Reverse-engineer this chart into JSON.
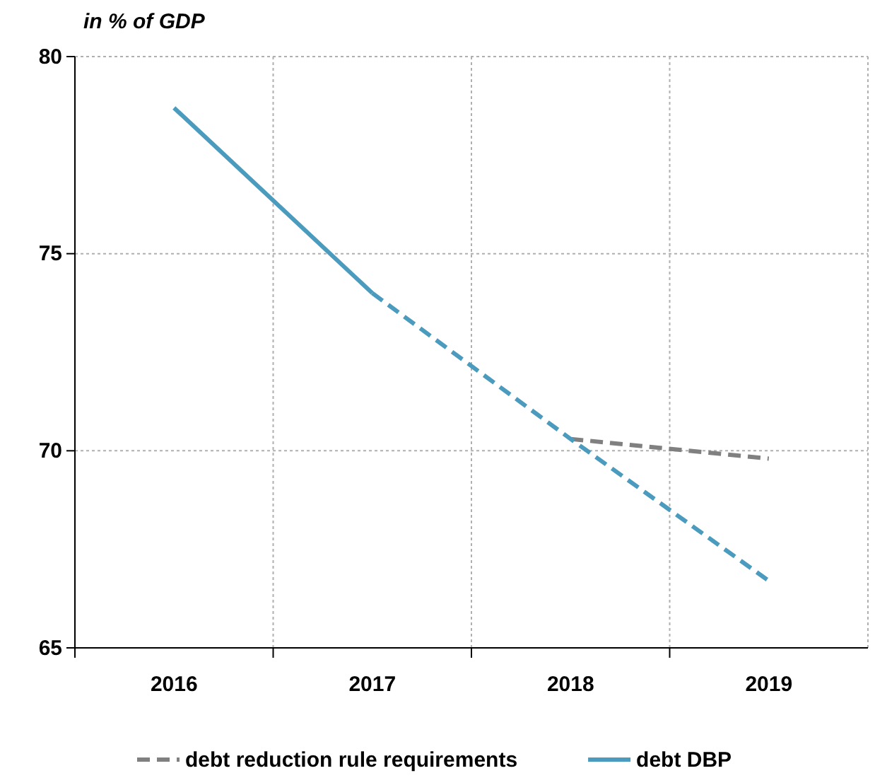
{
  "chart_data": {
    "type": "line",
    "ylabel": "in % of GDP",
    "categories": [
      "2016",
      "2017",
      "2018",
      "2019"
    ],
    "ylim": [
      65,
      80
    ],
    "yticks": [
      65,
      70,
      75,
      80
    ],
    "grid": true,
    "legend": "bottom",
    "marker": "none",
    "series": [
      {
        "name": "debt reduction rule requirements",
        "color": "#808080",
        "line_style": "dashed",
        "values": [
          null,
          null,
          70.3,
          69.8
        ]
      },
      {
        "name": "debt DBP",
        "color": "#4a9bbd",
        "line_style": "solid",
        "values": [
          78.7,
          74.0,
          null,
          null
        ]
      },
      {
        "color": "#4a9bbd",
        "line_style": "dashed",
        "values": [
          null,
          74.0,
          70.3,
          66.7
        ]
      }
    ]
  }
}
